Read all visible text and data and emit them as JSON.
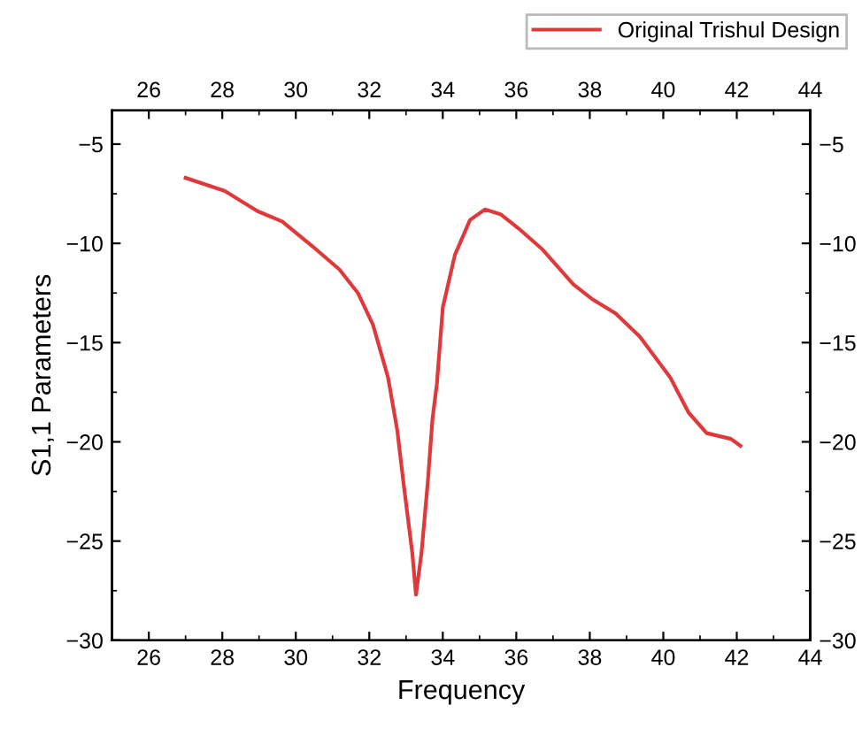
{
  "chart_data": {
    "type": "line",
    "xlabel": "Frequency",
    "ylabel": "S1,1 Parameters",
    "legend": "top right",
    "grid": false,
    "line_style": "solid",
    "marker": "none",
    "xlim": [
      25,
      44
    ],
    "xticks": [
      26,
      28,
      30,
      32,
      34,
      36,
      38,
      40,
      42,
      44
    ],
    "x2lim": [
      25,
      44
    ],
    "x2ticks": [
      26,
      28,
      30,
      32,
      34,
      36,
      38,
      40,
      42,
      44
    ],
    "ylim": [
      -30,
      -3.3
    ],
    "yticks": [
      -30,
      -25,
      -20,
      -15,
      -10,
      -5
    ],
    "y2lim": [
      -30,
      -3.3
    ],
    "y2ticks": [
      -30,
      -25,
      -20,
      -15,
      -10,
      -5
    ],
    "series": [
      {
        "name": "Original Trishul Design",
        "color": "#e0393b",
        "x": [
          27.0,
          28.06,
          28.96,
          29.63,
          30.45,
          31.19,
          31.69,
          32.1,
          32.51,
          32.76,
          32.93,
          33.17,
          33.27,
          33.42,
          33.59,
          33.72,
          33.84,
          34.0,
          34.33,
          34.74,
          35.15,
          35.57,
          36.07,
          36.72,
          37.55,
          38.05,
          38.7,
          39.36,
          40.19,
          40.69,
          41.18,
          41.84,
          42.1
        ],
        "values": [
          -6.7,
          -7.35,
          -8.38,
          -8.9,
          -10.14,
          -11.32,
          -12.5,
          -14.1,
          -16.76,
          -19.4,
          -22.06,
          -25.6,
          -27.7,
          -25.6,
          -22.06,
          -18.83,
          -17.06,
          -13.23,
          -10.58,
          -8.82,
          -8.29,
          -8.53,
          -9.26,
          -10.32,
          -12.06,
          -12.79,
          -13.53,
          -14.7,
          -16.76,
          -18.53,
          -19.56,
          -19.85,
          -20.2
        ]
      }
    ]
  }
}
